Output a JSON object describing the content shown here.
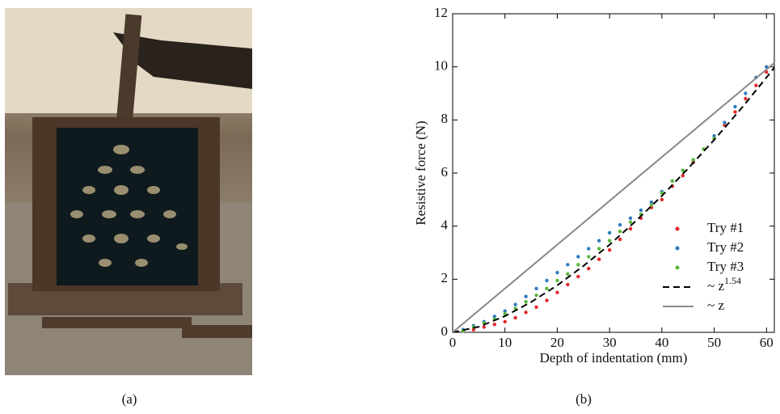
{
  "captions": [
    "(a)",
    "(b)"
  ],
  "chart_data": {
    "type": "scatter",
    "xlabel": "Depth of indentation (mm)",
    "ylabel": "Resistive force (N)",
    "xlim": [
      0,
      61.5
    ],
    "ylim": [
      0,
      12
    ],
    "xticks": [
      0,
      10,
      20,
      30,
      40,
      50,
      60
    ],
    "yticks": [
      0,
      2,
      4,
      6,
      8,
      10,
      12
    ],
    "series": [
      {
        "name": "Try #1",
        "type": "scatter",
        "color": "#e3262b",
        "x": [
          2,
          4,
          6,
          8,
          10,
          12,
          14,
          16,
          18,
          20,
          22,
          24,
          26,
          28,
          30,
          32,
          34,
          36,
          38,
          40,
          42,
          44,
          46,
          48,
          50,
          52,
          54,
          56,
          58,
          60
        ],
        "values": [
          0.05,
          0.1,
          0.2,
          0.3,
          0.4,
          0.55,
          0.75,
          0.95,
          1.2,
          1.5,
          1.8,
          2.1,
          2.4,
          2.75,
          3.1,
          3.5,
          3.9,
          4.3,
          4.7,
          5.0,
          5.5,
          5.9,
          6.4,
          6.9,
          7.3,
          7.8,
          8.3,
          8.8,
          9.3,
          9.8
        ]
      },
      {
        "name": "Try #2",
        "type": "scatter",
        "color": "#2f7bbf",
        "x": [
          2,
          4,
          6,
          8,
          10,
          12,
          14,
          16,
          18,
          20,
          22,
          24,
          26,
          28,
          30,
          32,
          34,
          36,
          38,
          40,
          42,
          44,
          46,
          48,
          50,
          52,
          54,
          56,
          58,
          60
        ],
        "values": [
          0.1,
          0.25,
          0.4,
          0.6,
          0.8,
          1.05,
          1.35,
          1.65,
          1.95,
          2.25,
          2.55,
          2.85,
          3.15,
          3.45,
          3.75,
          4.05,
          4.3,
          4.6,
          4.9,
          5.3,
          5.7,
          6.1,
          6.5,
          6.9,
          7.4,
          7.9,
          8.5,
          9.0,
          9.6,
          10.0
        ]
      },
      {
        "name": "Try #3",
        "type": "scatter",
        "color": "#5cb83a",
        "x": [
          2,
          4,
          6,
          8,
          10,
          12,
          14,
          16,
          18,
          20,
          22,
          24,
          26,
          28,
          30,
          32,
          34,
          36,
          38,
          40,
          42,
          44,
          46,
          48,
          50
        ],
        "values": [
          0.05,
          0.2,
          0.35,
          0.5,
          0.7,
          0.9,
          1.15,
          1.4,
          1.65,
          1.95,
          2.2,
          2.55,
          2.85,
          3.15,
          3.45,
          3.8,
          4.15,
          4.45,
          4.8,
          5.25,
          5.7,
          6.1,
          6.5,
          6.9,
          7.3
        ]
      },
      {
        "name": "~ z",
        "name_superscript": "1.54",
        "type": "line",
        "dash": true,
        "color": "#000000",
        "x": [
          0,
          5,
          10,
          15,
          20,
          25,
          30,
          35,
          40,
          45,
          50,
          55,
          60,
          61.5
        ],
        "values": [
          0,
          0.21,
          0.61,
          1.14,
          1.77,
          2.5,
          3.3,
          4.19,
          5.14,
          6.17,
          7.25,
          8.39,
          9.6,
          9.97
        ]
      },
      {
        "name": "~ z",
        "type": "line",
        "dash": false,
        "color": "#888888",
        "x": [
          0,
          61.5
        ],
        "values": [
          0,
          10.15
        ]
      }
    ]
  }
}
